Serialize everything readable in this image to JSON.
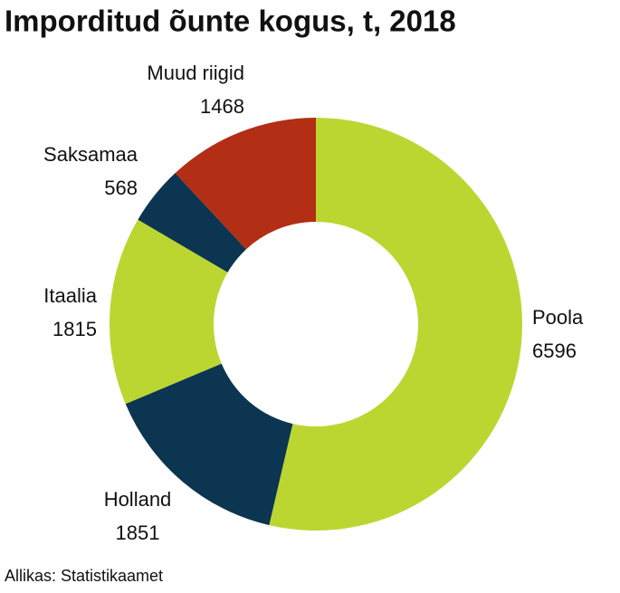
{
  "chart_data": {
    "type": "donut",
    "title": "Imporditud õunte kogus, t, 2018",
    "source": "Allikas: Statistikaamet",
    "categories": [
      "Poola",
      "Holland",
      "Itaalia",
      "Saksamaa",
      "Muud riigid"
    ],
    "values": [
      6596,
      1851,
      1815,
      568,
      1468
    ],
    "colors": [
      "#bcd631",
      "#0c3551",
      "#bcd631",
      "#0c3551",
      "#b22e14"
    ]
  }
}
